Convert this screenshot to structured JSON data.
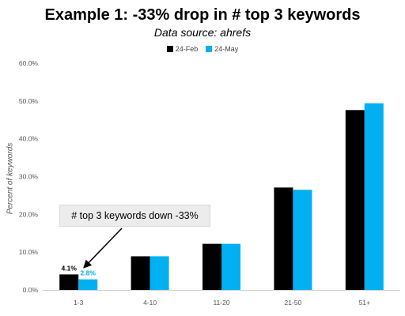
{
  "chart_data": {
    "type": "bar",
    "title": "Example 1: -33% drop in # top 3 keywords",
    "subtitle": "Data source: ahrefs",
    "xlabel": "",
    "ylabel": "Percent of keywords",
    "categories": [
      "1-3",
      "4-10",
      "11-20",
      "21-50",
      "51+"
    ],
    "series": [
      {
        "name": "24-Feb",
        "color": "#000000",
        "values": [
          4.1,
          8.9,
          12.2,
          27.1,
          47.6
        ]
      },
      {
        "name": "24-May",
        "color": "#00b0f0",
        "values": [
          2.8,
          8.9,
          12.2,
          26.5,
          49.4
        ]
      }
    ],
    "data_labels": [
      {
        "series": 0,
        "index": 0,
        "text": "4.1%",
        "color": "#000000"
      },
      {
        "series": 1,
        "index": 0,
        "text": "2.8%",
        "color": "#00b0f0"
      }
    ],
    "yticks": [
      0,
      10,
      20,
      30,
      40,
      50,
      60
    ],
    "ytick_labels": [
      "0.0%",
      "10.0%",
      "20.0%",
      "30.0%",
      "40.0%",
      "50.0%",
      "60.0%"
    ],
    "ylim": [
      0,
      60
    ],
    "grid": false,
    "legend_position": "top-center",
    "annotation": "# top 3 keywords down -33%"
  }
}
